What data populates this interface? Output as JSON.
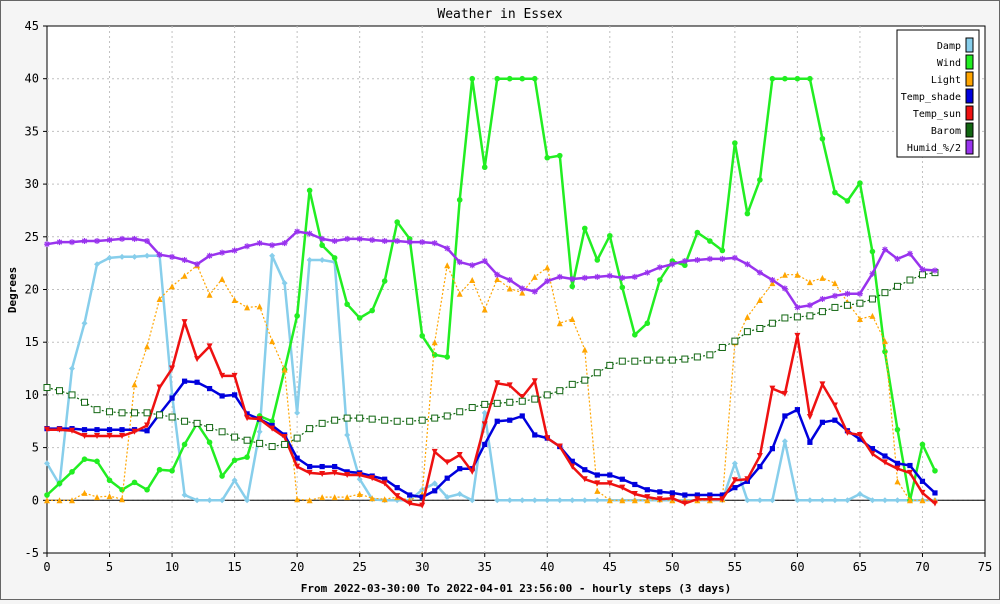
{
  "chart_data": {
    "type": "line",
    "title": "Weather in Essex",
    "ylabel": "Degrees",
    "xlabel": "From 2022-03-30:00 To 2022-04-01 23:56:00 - hourly steps (3 days)",
    "xlim": [
      0,
      75
    ],
    "ylim": [
      -5,
      45
    ],
    "x_ticks": [
      0,
      5,
      10,
      15,
      20,
      25,
      30,
      35,
      40,
      45,
      50,
      55,
      60,
      65,
      70,
      75
    ],
    "y_ticks": [
      -5,
      0,
      5,
      10,
      15,
      20,
      25,
      30,
      35,
      40,
      45
    ],
    "grid": true,
    "legend_position": "top-right",
    "series": [
      {
        "name": "Damp",
        "color": "#87ceeb",
        "marker": "diamond",
        "values": [
          3.5,
          1.5,
          12.5,
          16.8,
          22.4,
          23.0,
          23.1,
          23.1,
          23.2,
          23.2,
          10.0,
          0.5,
          0.0,
          0.0,
          0.0,
          1.9,
          0.0,
          6.5,
          23.2,
          20.6,
          8.3,
          22.8,
          22.8,
          22.6,
          6.2,
          2.0,
          0.1,
          0.0,
          0.0,
          0.0,
          1.0,
          1.6,
          0.3,
          0.6,
          0.0,
          8.3,
          0.0,
          0.0,
          0.0,
          0.0,
          0.0,
          0.0,
          0.0,
          0.0,
          0.0,
          0.0,
          0.0,
          0.0,
          0.0,
          0.0,
          0.0,
          0.0,
          0.0,
          0.0,
          0.0,
          3.5,
          0.0,
          0.0,
          0.0,
          5.6,
          0.0,
          0.0,
          0.0,
          0.0,
          0.0,
          0.6,
          0.0,
          0.0,
          0.0,
          0.0,
          0.0,
          0.0
        ]
      },
      {
        "name": "Wind",
        "color": "#22ee22",
        "marker": "circle",
        "values": [
          0.5,
          1.6,
          2.7,
          3.9,
          3.7,
          1.9,
          1.0,
          1.7,
          1.0,
          2.9,
          2.8,
          5.3,
          7.3,
          5.5,
          2.3,
          3.8,
          4.1,
          8.0,
          7.5,
          12.4,
          17.5,
          29.4,
          24.2,
          23.0,
          18.6,
          17.3,
          18.0,
          20.8,
          26.4,
          24.8,
          15.6,
          13.8,
          13.6,
          28.5,
          40.0,
          31.6,
          40.0,
          40.0,
          40.0,
          40.0,
          32.5,
          32.7,
          20.3,
          25.8,
          22.8,
          25.1,
          20.2,
          15.7,
          16.8,
          20.9,
          22.7,
          22.3,
          25.4,
          24.6,
          23.7,
          33.9,
          27.2,
          30.4,
          40.0,
          40.0,
          40.0,
          40.0,
          34.3,
          29.2,
          28.4,
          30.1,
          23.6,
          14.1,
          6.7,
          0.0,
          5.3,
          2.8
        ]
      },
      {
        "name": "Light",
        "color": "#ffa500",
        "marker": "triangle-up",
        "values": [
          0.0,
          0.0,
          0.0,
          0.7,
          0.3,
          0.4,
          0.1,
          11.0,
          14.6,
          19.1,
          20.3,
          21.3,
          22.3,
          19.5,
          21.0,
          19.0,
          18.3,
          18.4,
          15.1,
          12.4,
          0.1,
          0.0,
          0.3,
          0.3,
          0.3,
          0.6,
          0.2,
          0.1,
          0.3,
          0.0,
          0.6,
          15.0,
          22.3,
          19.6,
          20.9,
          18.1,
          21.0,
          20.1,
          19.7,
          21.2,
          22.1,
          16.8,
          17.2,
          14.3,
          0.9,
          0.0,
          0.0,
          0.0,
          0.0,
          0.1,
          0.0,
          0.0,
          0.0,
          0.0,
          0.1,
          15.0,
          17.4,
          19.0,
          20.6,
          21.4,
          21.4,
          20.7,
          21.1,
          20.6,
          18.8,
          17.2,
          17.5,
          15.1,
          1.8,
          0.0,
          0.0,
          0.0
        ]
      },
      {
        "name": "Temp_shade",
        "color": "#0000dd",
        "marker": "square",
        "values": [
          6.8,
          6.8,
          6.8,
          6.7,
          6.7,
          6.7,
          6.7,
          6.7,
          6.6,
          8.2,
          9.7,
          11.3,
          11.2,
          10.6,
          9.9,
          10.0,
          8.2,
          7.7,
          7.1,
          6.2,
          4.0,
          3.2,
          3.2,
          3.2,
          2.7,
          2.6,
          2.3,
          2.0,
          1.2,
          0.5,
          0.3,
          0.9,
          2.1,
          3.0,
          3.0,
          5.3,
          7.5,
          7.6,
          8.0,
          6.2,
          5.9,
          5.1,
          3.7,
          2.9,
          2.4,
          2.4,
          2.0,
          1.5,
          1.0,
          0.8,
          0.7,
          0.5,
          0.5,
          0.5,
          0.5,
          1.2,
          1.8,
          3.2,
          4.9,
          8.0,
          8.6,
          5.5,
          7.4,
          7.6,
          6.6,
          5.8,
          4.9,
          4.2,
          3.5,
          3.3,
          1.8,
          0.7
        ]
      },
      {
        "name": "Temp_sun",
        "color": "#ee1111",
        "marker": "triangle-down",
        "values": [
          6.7,
          6.7,
          6.6,
          6.1,
          6.1,
          6.1,
          6.1,
          6.5,
          7.1,
          10.7,
          12.5,
          16.9,
          13.4,
          14.6,
          11.8,
          11.8,
          7.8,
          7.7,
          6.8,
          6.0,
          3.2,
          2.6,
          2.5,
          2.6,
          2.4,
          2.4,
          2.1,
          1.6,
          0.4,
          -0.3,
          -0.5,
          4.6,
          3.6,
          4.3,
          2.7,
          7.2,
          11.1,
          10.9,
          9.8,
          11.3,
          5.9,
          5.1,
          3.2,
          2.0,
          1.6,
          1.6,
          1.2,
          0.6,
          0.3,
          0.1,
          0.2,
          -0.3,
          0.1,
          0.1,
          0.1,
          1.9,
          2.0,
          4.2,
          10.6,
          10.1,
          15.6,
          7.9,
          11.0,
          9.0,
          6.4,
          6.2,
          4.4,
          3.6,
          3.0,
          2.6,
          0.7,
          -0.3
        ]
      },
      {
        "name": "Barom",
        "color": "#116611",
        "marker": "open-square",
        "values": [
          10.7,
          10.4,
          10.0,
          9.3,
          8.6,
          8.4,
          8.3,
          8.3,
          8.3,
          8.1,
          7.9,
          7.5,
          7.3,
          6.9,
          6.5,
          6.0,
          5.7,
          5.4,
          5.1,
          5.3,
          5.9,
          6.8,
          7.3,
          7.6,
          7.8,
          7.8,
          7.7,
          7.6,
          7.5,
          7.5,
          7.6,
          7.8,
          8.0,
          8.4,
          8.8,
          9.1,
          9.2,
          9.3,
          9.4,
          9.6,
          10.0,
          10.4,
          11.0,
          11.4,
          12.1,
          12.8,
          13.2,
          13.2,
          13.3,
          13.3,
          13.3,
          13.4,
          13.6,
          13.8,
          14.5,
          15.1,
          16.0,
          16.3,
          16.8,
          17.3,
          17.4,
          17.5,
          17.9,
          18.3,
          18.5,
          18.7,
          19.1,
          19.7,
          20.3,
          20.9,
          21.4,
          21.6
        ]
      },
      {
        "name": "Humid_%/2",
        "color": "#9933ee",
        "marker": "star",
        "values": [
          24.3,
          24.5,
          24.5,
          24.6,
          24.6,
          24.7,
          24.8,
          24.8,
          24.6,
          23.3,
          23.1,
          22.8,
          22.4,
          23.2,
          23.5,
          23.7,
          24.1,
          24.4,
          24.2,
          24.4,
          25.5,
          25.3,
          24.8,
          24.6,
          24.8,
          24.8,
          24.7,
          24.6,
          24.6,
          24.5,
          24.5,
          24.4,
          23.9,
          22.6,
          22.3,
          22.7,
          21.4,
          20.9,
          20.1,
          19.8,
          20.8,
          21.2,
          21.0,
          21.1,
          21.2,
          21.3,
          21.1,
          21.2,
          21.6,
          22.1,
          22.4,
          22.7,
          22.8,
          22.9,
          22.9,
          23.0,
          22.4,
          21.6,
          20.9,
          20.1,
          18.3,
          18.5,
          19.1,
          19.4,
          19.6,
          19.6,
          21.5,
          23.8,
          22.9,
          23.4,
          21.9,
          21.8
        ]
      }
    ]
  }
}
